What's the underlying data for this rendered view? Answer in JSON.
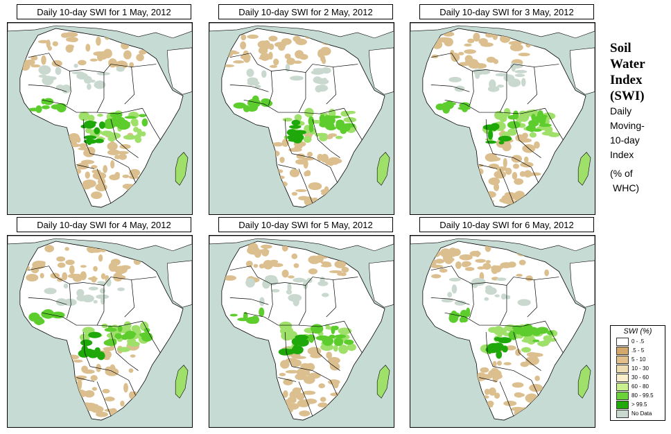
{
  "panels": [
    {
      "title": "Daily 10-day SWI for  1 May, 2012"
    },
    {
      "title": "Daily 10-day SWI for  2 May, 2012"
    },
    {
      "title": "Daily 10-day SWI for  3 May, 2012"
    },
    {
      "title": "Daily 10-day SWI for  4 May, 2012"
    },
    {
      "title": "Daily 10-day SWI for  5 May, 2012"
    },
    {
      "title": "Daily 10-day SWI for  6 May, 2012"
    }
  ],
  "side": {
    "title_lines": [
      "Soil",
      "Water",
      "Index",
      "(SWI)"
    ],
    "desc_lines": [
      "Daily",
      "Moving-",
      "10-day",
      "Index"
    ],
    "unit_lines": [
      "(% of",
      "WHC)"
    ]
  },
  "legend": {
    "title": "SWI (%)",
    "items": [
      {
        "label": "0 - .5",
        "color": "#ffffff"
      },
      {
        "label": ".5 - 5",
        "color": "#d2a86c"
      },
      {
        "label": "5 - 10",
        "color": "#e1c08c"
      },
      {
        "label": "10 - 30",
        "color": "#efdcb0"
      },
      {
        "label": "30 - 60",
        "color": "#fbf0cc"
      },
      {
        "label": "60 - 80",
        "color": "#c9ef8e"
      },
      {
        "label": "80 - 99.5",
        "color": "#6cd23a"
      },
      {
        "label": "> 99.5",
        "color": "#21a90a"
      },
      {
        "label": "No Data",
        "color": "#c9d9cf"
      }
    ]
  },
  "map_colors": {
    "sea": "#c6dbd3",
    "land": "#ffffff",
    "border": "#000000",
    "dry": "#dcbf8e",
    "wet_light": "#9fe06a",
    "wet_mid": "#5ccd2c",
    "wet_dark": "#1fa80a",
    "nodata": "#c9d9cf"
  }
}
